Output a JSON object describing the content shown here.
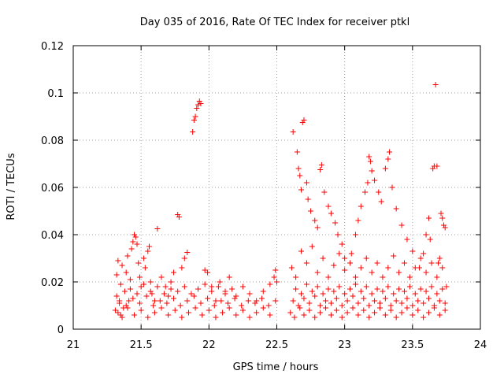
{
  "chart_data": {
    "type": "scatter",
    "title": "Day 035 of 2016, Rate Of TEC Index for receiver ptkl",
    "xlabel": "GPS time / hours",
    "ylabel": "ROTI / TECUs",
    "xlim": [
      21,
      24
    ],
    "ylim": [
      0,
      0.12
    ],
    "xticks": [
      21,
      21.5,
      22,
      22.5,
      23,
      23.5,
      24
    ],
    "xtick_labels": [
      "21",
      "21.5",
      "22",
      "22.5",
      "23",
      "23.5",
      "24"
    ],
    "yticks": [
      0,
      0.02,
      0.04,
      0.06,
      0.08,
      0.1,
      0.12
    ],
    "ytick_labels": [
      "0",
      "0.02",
      "0.04",
      "0.06",
      "0.08",
      "0.1",
      "0.12"
    ],
    "grid": true,
    "marker": "+",
    "marker_color": "#ff0000",
    "series": [
      {
        "name": "ROTI",
        "points": [
          [
            21.31,
            0.008
          ],
          [
            21.32,
            0.014
          ],
          [
            21.32,
            0.023
          ],
          [
            21.33,
            0.029
          ],
          [
            21.34,
            0.011
          ],
          [
            21.35,
            0.006
          ],
          [
            21.35,
            0.019
          ],
          [
            21.36,
            0.027
          ],
          [
            21.37,
            0.009
          ],
          [
            21.38,
            0.016
          ],
          [
            21.39,
            0.024
          ],
          [
            21.4,
            0.031
          ],
          [
            21.41,
            0.012
          ],
          [
            21.42,
            0.021
          ],
          [
            21.43,
            0.034
          ],
          [
            21.44,
            0.037
          ],
          [
            21.45,
            0.04
          ],
          [
            21.46,
            0.039
          ],
          [
            21.47,
            0.036
          ],
          [
            21.48,
            0.028
          ],
          [
            21.49,
            0.022
          ],
          [
            21.5,
            0.018
          ],
          [
            21.52,
            0.03
          ],
          [
            21.53,
            0.026
          ],
          [
            21.55,
            0.033
          ],
          [
            21.56,
            0.035
          ],
          [
            21.57,
            0.02
          ],
          [
            21.58,
            0.015
          ],
          [
            21.6,
            0.012
          ],
          [
            21.62,
            0.0425
          ],
          [
            21.65,
            0.022
          ],
          [
            21.68,
            0.018
          ],
          [
            21.7,
            0.014
          ],
          [
            21.72,
            0.02
          ],
          [
            21.74,
            0.024
          ],
          [
            21.77,
            0.0485
          ],
          [
            21.78,
            0.0475
          ],
          [
            21.8,
            0.026
          ],
          [
            21.82,
            0.03
          ],
          [
            21.84,
            0.0325
          ],
          [
            21.88,
            0.0835
          ],
          [
            21.89,
            0.0885
          ],
          [
            21.9,
            0.09
          ],
          [
            21.91,
            0.0935
          ],
          [
            21.92,
            0.095
          ],
          [
            21.93,
            0.0965
          ],
          [
            21.94,
            0.0955
          ],
          [
            21.97,
            0.025
          ],
          [
            21.99,
            0.024
          ],
          [
            22.02,
            0.018
          ],
          [
            22.05,
            0.012
          ],
          [
            22.08,
            0.02
          ],
          [
            22.12,
            0.016
          ],
          [
            22.15,
            0.022
          ],
          [
            22.2,
            0.014
          ],
          [
            22.25,
            0.018
          ],
          [
            22.3,
            0.015
          ],
          [
            22.35,
            0.012
          ],
          [
            22.4,
            0.016
          ],
          [
            22.45,
            0.019
          ],
          [
            22.48,
            0.022
          ],
          [
            22.49,
            0.025
          ],
          [
            22.5,
            0.02
          ],
          [
            21.33,
            0.007
          ],
          [
            21.36,
            0.005
          ],
          [
            21.4,
            0.009
          ],
          [
            21.45,
            0.006
          ],
          [
            21.5,
            0.008
          ],
          [
            21.55,
            0.005
          ],
          [
            21.6,
            0.007
          ],
          [
            21.65,
            0.009
          ],
          [
            21.7,
            0.006
          ],
          [
            21.75,
            0.008
          ],
          [
            21.8,
            0.005
          ],
          [
            21.85,
            0.007
          ],
          [
            21.9,
            0.009
          ],
          [
            21.95,
            0.006
          ],
          [
            22.0,
            0.008
          ],
          [
            22.05,
            0.005
          ],
          [
            22.1,
            0.007
          ],
          [
            22.15,
            0.009
          ],
          [
            22.2,
            0.006
          ],
          [
            22.25,
            0.008
          ],
          [
            22.3,
            0.005
          ],
          [
            22.35,
            0.007
          ],
          [
            22.4,
            0.009
          ],
          [
            22.45,
            0.006
          ],
          [
            21.34,
            0.012
          ],
          [
            21.39,
            0.01
          ],
          [
            21.44,
            0.013
          ],
          [
            21.49,
            0.011
          ],
          [
            21.54,
            0.014
          ],
          [
            21.59,
            0.01
          ],
          [
            21.64,
            0.012
          ],
          [
            21.69,
            0.011
          ],
          [
            21.74,
            0.013
          ],
          [
            21.79,
            0.01
          ],
          [
            21.84,
            0.012
          ],
          [
            21.89,
            0.014
          ],
          [
            21.94,
            0.011
          ],
          [
            21.99,
            0.013
          ],
          [
            22.04,
            0.01
          ],
          [
            22.09,
            0.012
          ],
          [
            22.14,
            0.011
          ],
          [
            22.19,
            0.013
          ],
          [
            22.24,
            0.01
          ],
          [
            22.29,
            0.012
          ],
          [
            22.34,
            0.011
          ],
          [
            22.39,
            0.013
          ],
          [
            22.44,
            0.01
          ],
          [
            22.49,
            0.012
          ],
          [
            21.42,
            0.017
          ],
          [
            21.47,
            0.015
          ],
          [
            21.52,
            0.019
          ],
          [
            21.57,
            0.016
          ],
          [
            21.62,
            0.018
          ],
          [
            21.67,
            0.015
          ],
          [
            21.72,
            0.017
          ],
          [
            21.77,
            0.016
          ],
          [
            21.82,
            0.018
          ],
          [
            21.87,
            0.015
          ],
          [
            21.92,
            0.017
          ],
          [
            21.97,
            0.019
          ],
          [
            22.02,
            0.016
          ],
          [
            22.07,
            0.018
          ],
          [
            22.12,
            0.015
          ],
          [
            22.17,
            0.017
          ],
          [
            22.62,
            0.0835
          ],
          [
            22.65,
            0.075
          ],
          [
            22.66,
            0.068
          ],
          [
            22.67,
            0.065
          ],
          [
            22.68,
            0.059
          ],
          [
            22.69,
            0.0875
          ],
          [
            22.7,
            0.0885
          ],
          [
            22.72,
            0.062
          ],
          [
            22.73,
            0.055
          ],
          [
            22.75,
            0.05
          ],
          [
            22.78,
            0.046
          ],
          [
            22.8,
            0.043
          ],
          [
            22.82,
            0.0675
          ],
          [
            22.83,
            0.0695
          ],
          [
            22.85,
            0.058
          ],
          [
            22.88,
            0.052
          ],
          [
            22.9,
            0.049
          ],
          [
            22.93,
            0.045
          ],
          [
            22.95,
            0.04
          ],
          [
            22.98,
            0.036
          ],
          [
            23.0,
            0.03
          ],
          [
            23.05,
            0.032
          ],
          [
            23.08,
            0.04
          ],
          [
            23.1,
            0.046
          ],
          [
            23.12,
            0.052
          ],
          [
            23.15,
            0.058
          ],
          [
            23.17,
            0.062
          ],
          [
            23.18,
            0.073
          ],
          [
            23.19,
            0.071
          ],
          [
            23.2,
            0.067
          ],
          [
            23.22,
            0.063
          ],
          [
            23.25,
            0.058
          ],
          [
            23.27,
            0.054
          ],
          [
            23.3,
            0.068
          ],
          [
            23.32,
            0.072
          ],
          [
            23.33,
            0.075
          ],
          [
            23.35,
            0.06
          ],
          [
            23.38,
            0.051
          ],
          [
            23.42,
            0.044
          ],
          [
            23.46,
            0.038
          ],
          [
            23.5,
            0.033
          ],
          [
            23.55,
            0.026
          ],
          [
            23.58,
            0.032
          ],
          [
            23.6,
            0.04
          ],
          [
            23.62,
            0.047
          ],
          [
            23.63,
            0.038
          ],
          [
            23.65,
            0.068
          ],
          [
            23.66,
            0.069
          ],
          [
            23.67,
            0.1035
          ],
          [
            23.68,
            0.069
          ],
          [
            23.69,
            0.028
          ],
          [
            23.7,
            0.03
          ],
          [
            23.71,
            0.049
          ],
          [
            23.72,
            0.047
          ],
          [
            23.73,
            0.044
          ],
          [
            23.74,
            0.043
          ],
          [
            23.75,
            0.018
          ],
          [
            22.61,
            0.026
          ],
          [
            22.64,
            0.022
          ],
          [
            22.68,
            0.033
          ],
          [
            22.72,
            0.028
          ],
          [
            22.76,
            0.035
          ],
          [
            22.8,
            0.024
          ],
          [
            22.84,
            0.03
          ],
          [
            22.88,
            0.022
          ],
          [
            22.92,
            0.027
          ],
          [
            22.96,
            0.032
          ],
          [
            23.0,
            0.025
          ],
          [
            23.04,
            0.028
          ],
          [
            23.08,
            0.022
          ],
          [
            23.12,
            0.026
          ],
          [
            23.16,
            0.03
          ],
          [
            23.2,
            0.024
          ],
          [
            23.24,
            0.028
          ],
          [
            23.28,
            0.022
          ],
          [
            23.32,
            0.026
          ],
          [
            23.36,
            0.031
          ],
          [
            23.4,
            0.024
          ],
          [
            23.44,
            0.028
          ],
          [
            23.48,
            0.022
          ],
          [
            23.52,
            0.026
          ],
          [
            23.56,
            0.03
          ],
          [
            23.6,
            0.024
          ],
          [
            23.64,
            0.028
          ],
          [
            23.68,
            0.022
          ],
          [
            23.72,
            0.026
          ],
          [
            22.6,
            0.007
          ],
          [
            22.63,
            0.005
          ],
          [
            22.67,
            0.009
          ],
          [
            22.7,
            0.006
          ],
          [
            22.74,
            0.008
          ],
          [
            22.78,
            0.005
          ],
          [
            22.82,
            0.007
          ],
          [
            22.86,
            0.009
          ],
          [
            22.9,
            0.006
          ],
          [
            22.94,
            0.008
          ],
          [
            22.98,
            0.005
          ],
          [
            23.02,
            0.007
          ],
          [
            23.06,
            0.009
          ],
          [
            23.1,
            0.006
          ],
          [
            23.14,
            0.008
          ],
          [
            23.18,
            0.005
          ],
          [
            23.22,
            0.007
          ],
          [
            23.26,
            0.009
          ],
          [
            23.3,
            0.006
          ],
          [
            23.34,
            0.008
          ],
          [
            23.38,
            0.005
          ],
          [
            23.42,
            0.007
          ],
          [
            23.46,
            0.009
          ],
          [
            23.5,
            0.006
          ],
          [
            23.54,
            0.008
          ],
          [
            23.58,
            0.005
          ],
          [
            23.62,
            0.007
          ],
          [
            23.66,
            0.009
          ],
          [
            23.7,
            0.006
          ],
          [
            23.74,
            0.008
          ],
          [
            22.62,
            0.012
          ],
          [
            22.66,
            0.01
          ],
          [
            22.7,
            0.013
          ],
          [
            22.74,
            0.011
          ],
          [
            22.78,
            0.014
          ],
          [
            22.82,
            0.01
          ],
          [
            22.86,
            0.012
          ],
          [
            22.9,
            0.011
          ],
          [
            22.94,
            0.013
          ],
          [
            22.98,
            0.01
          ],
          [
            23.02,
            0.012
          ],
          [
            23.06,
            0.014
          ],
          [
            23.1,
            0.011
          ],
          [
            23.14,
            0.013
          ],
          [
            23.18,
            0.01
          ],
          [
            23.22,
            0.012
          ],
          [
            23.26,
            0.011
          ],
          [
            23.3,
            0.013
          ],
          [
            23.34,
            0.01
          ],
          [
            23.38,
            0.012
          ],
          [
            23.42,
            0.011
          ],
          [
            23.46,
            0.013
          ],
          [
            23.5,
            0.01
          ],
          [
            23.54,
            0.012
          ],
          [
            23.58,
            0.011
          ],
          [
            23.62,
            0.013
          ],
          [
            23.66,
            0.01
          ],
          [
            23.7,
            0.012
          ],
          [
            23.74,
            0.011
          ],
          [
            22.64,
            0.017
          ],
          [
            22.68,
            0.015
          ],
          [
            22.72,
            0.019
          ],
          [
            22.76,
            0.016
          ],
          [
            22.8,
            0.018
          ],
          [
            22.84,
            0.015
          ],
          [
            22.88,
            0.017
          ],
          [
            22.92,
            0.016
          ],
          [
            22.96,
            0.018
          ],
          [
            23.0,
            0.015
          ],
          [
            23.04,
            0.017
          ],
          [
            23.08,
            0.019
          ],
          [
            23.12,
            0.016
          ],
          [
            23.16,
            0.018
          ],
          [
            23.2,
            0.015
          ],
          [
            23.24,
            0.017
          ],
          [
            23.28,
            0.016
          ],
          [
            23.32,
            0.018
          ],
          [
            23.36,
            0.015
          ],
          [
            23.4,
            0.017
          ],
          [
            23.44,
            0.016
          ],
          [
            23.48,
            0.018
          ],
          [
            23.52,
            0.015
          ],
          [
            23.56,
            0.017
          ],
          [
            23.6,
            0.016
          ],
          [
            23.64,
            0.018
          ],
          [
            23.68,
            0.015
          ],
          [
            23.72,
            0.017
          ]
        ]
      }
    ]
  }
}
